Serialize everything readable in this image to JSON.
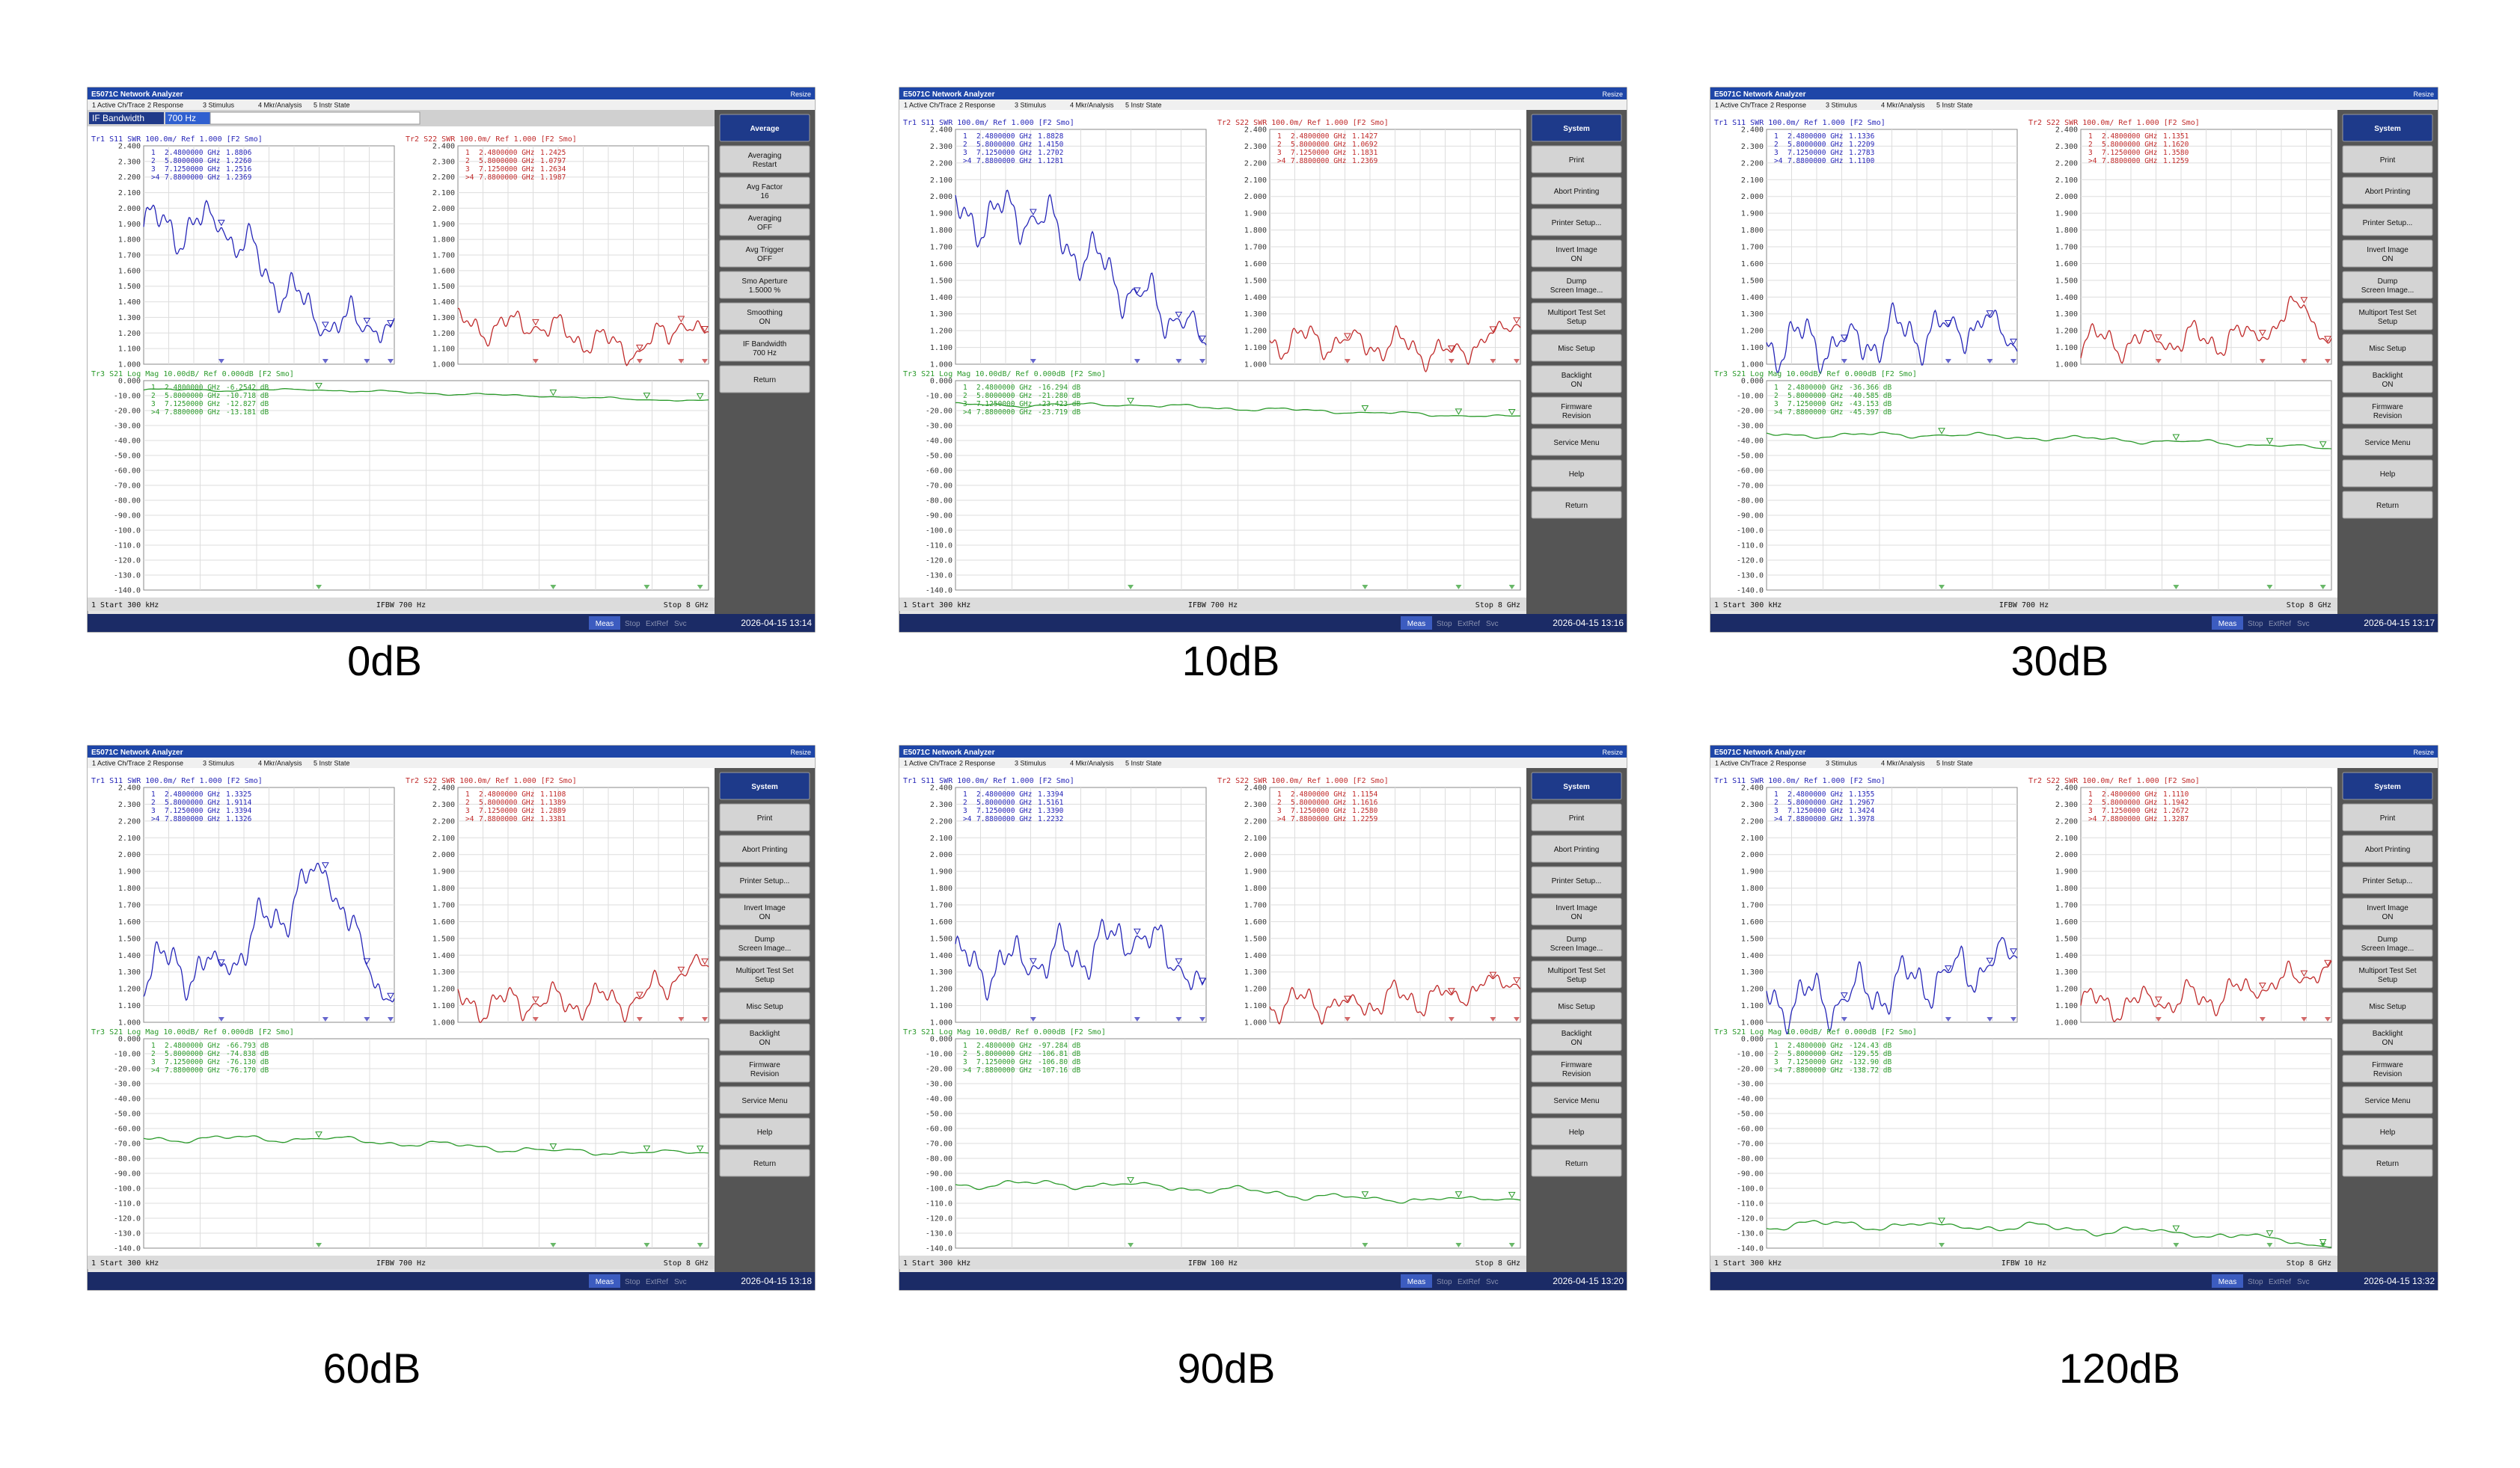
{
  "window_title": "E5071C Network Analyzer",
  "resize": "Resize",
  "menu": [
    "1 Active Ch/Trace",
    "2 Response",
    "3 Stimulus",
    "4 Mkr/Analysis",
    "5 Instr State"
  ],
  "traces": {
    "s11": "Tr1 S11 SWR 100.0m/ Ref 1.000 [F2 Smo]",
    "s22": "Tr2 S22 SWR 100.0m/ Ref 1.000 [F2 Smo]",
    "s21": "Tr3 S21 Log Mag 10.00dB/ Ref 0.000dB [F2 Smo]"
  },
  "swr_scale": [
    "2.400",
    "2.300",
    "2.200",
    "2.100",
    "2.000",
    "1.900",
    "1.800",
    "1.700",
    "1.600",
    "1.500",
    "1.400",
    "1.300",
    "1.200",
    "1.100",
    "1.000"
  ],
  "logmag_scale": [
    "0.000",
    "-10.00",
    "-20.00",
    "-30.00",
    "-40.00",
    "-50.00",
    "-60.00",
    "-70.00",
    "-80.00",
    "-90.00",
    "-100.0",
    "-110.0",
    "-120.0",
    "-130.0",
    "-140.0"
  ],
  "marker_ids": [
    "1",
    "2",
    "3",
    ">4"
  ],
  "marker_freqs": [
    "2.4800000 GHz",
    "5.8000000 GHz",
    "7.1250000 GHz",
    "7.8800000 GHz"
  ],
  "status": {
    "start": "1 Start 300 kHz",
    "stop": "Stop 8 GHz",
    "meas": "Meas",
    "stop_key": "Stop",
    "extref": "ExtRef",
    "svc": "Svc"
  },
  "system_keys": [
    [
      "System"
    ],
    [
      "Print"
    ],
    [
      "Abort Printing"
    ],
    [
      "Printer Setup..."
    ],
    [
      "Invert Image",
      "ON"
    ],
    [
      "Dump",
      "Screen Image..."
    ],
    [
      "Multiport Test Set",
      "Setup"
    ],
    [
      "Misc Setup"
    ],
    [
      "Backlight",
      "ON"
    ],
    [
      "Firmware",
      "Revision"
    ],
    [
      "Service Menu"
    ],
    [
      "Help"
    ],
    [
      "Return"
    ]
  ],
  "panels": [
    {
      "caption": "0dB",
      "ifbw": "IFBW 700 Hz",
      "timestamp": "2026-04-15 13:14",
      "if_entry": {
        "label": "IF Bandwidth",
        "value": "700 Hz"
      },
      "softkeys": [
        [
          "Average"
        ],
        [
          "Averaging",
          "Restart"
        ],
        [
          "Avg Factor",
          "16"
        ],
        [
          "Averaging",
          "OFF"
        ],
        [
          "Avg Trigger",
          "OFF"
        ],
        [
          "Smo Aperture",
          "1.5000 %"
        ],
        [
          "Smoothing",
          "ON"
        ],
        [
          "IF Bandwidth",
          "700 Hz"
        ],
        [
          "Return"
        ]
      ],
      "s11": [
        "1.8806",
        "1.2260",
        "1.2516",
        "1.2369"
      ],
      "s22": [
        "1.2425",
        "1.0797",
        "1.2634",
        "1.1987"
      ],
      "s21": [
        "-6.2542 dB",
        "-10.718 dB",
        "-12.827 dB",
        "-13.181 dB"
      ]
    },
    {
      "caption": "10dB",
      "ifbw": "IFBW 700 Hz",
      "timestamp": "2026-04-15 13:16",
      "s11": [
        "1.8828",
        "1.4150",
        "1.2702",
        "1.1281"
      ],
      "s22": [
        "1.1427",
        "1.0692",
        "1.1831",
        "1.2369"
      ],
      "s21": [
        "-16.294 dB",
        "-21.280 dB",
        "-23.423 dB",
        "-23.719 dB"
      ]
    },
    {
      "caption": "30dB",
      "ifbw": "IFBW 700 Hz",
      "timestamp": "2026-04-15 13:17",
      "s11": [
        "1.1336",
        "1.2209",
        "1.2783",
        "1.1100"
      ],
      "s22": [
        "1.1351",
        "1.1620",
        "1.3580",
        "1.1259"
      ],
      "s21": [
        "-36.366 dB",
        "-40.585 dB",
        "-43.153 dB",
        "-45.397 dB"
      ]
    },
    {
      "caption": "60dB",
      "ifbw": "IFBW 700 Hz",
      "timestamp": "2026-04-15 13:18",
      "s11": [
        "1.3325",
        "1.9114",
        "1.3394",
        "1.1326"
      ],
      "s22": [
        "1.1108",
        "1.1389",
        "1.2889",
        "1.3381"
      ],
      "s21": [
        "-66.793 dB",
        "-74.838 dB",
        "-76.130 dB",
        "-76.170 dB"
      ]
    },
    {
      "caption": "90dB",
      "ifbw": "IFBW 100 Hz",
      "timestamp": "2026-04-15 13:20",
      "s11": [
        "1.3394",
        "1.5161",
        "1.3390",
        "1.2232"
      ],
      "s22": [
        "1.1154",
        "1.1616",
        "1.2580",
        "1.2259"
      ],
      "s21": [
        "-97.284 dB",
        "-106.81 dB",
        "-106.80 dB",
        "-107.16 dB"
      ]
    },
    {
      "caption": "120dB",
      "ifbw": "IFBW 10 Hz",
      "timestamp": "2026-04-15 13:32",
      "s11": [
        "1.1355",
        "1.2967",
        "1.3424",
        "1.3978"
      ],
      "s22": [
        "1.1110",
        "1.1942",
        "1.2672",
        "1.3287"
      ],
      "s21": [
        "-124.43 dB",
        "-129.55 dB",
        "-132.90 dB",
        "-138.72 dB"
      ]
    }
  ]
}
